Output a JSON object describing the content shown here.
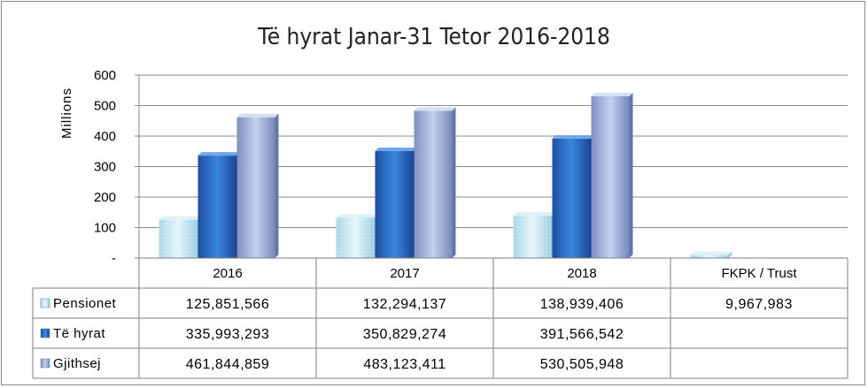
{
  "chart_data": {
    "type": "bar",
    "title": "Të hyrat  Janar-31 Tetor  2016-2018",
    "ylabel": "Millions",
    "xlabel": "",
    "ylim": [
      0,
      600
    ],
    "yticks": [
      "-",
      "100",
      "200",
      "300",
      "400",
      "500",
      "600"
    ],
    "ytick_values": [
      0,
      100,
      200,
      300,
      400,
      500,
      600
    ],
    "categories": [
      "2016",
      "2017",
      "2018",
      "FKPK / Trust"
    ],
    "series": [
      {
        "name": "Pensionet",
        "color": "#bfe3f0",
        "values": [
          125851566,
          132294137,
          138939406,
          9967983
        ],
        "labels": [
          "125,851,566",
          "132,294,137",
          "138,939,406",
          "9,967,983"
        ]
      },
      {
        "name": "Të hyrat",
        "color": "#2e6fc9",
        "values": [
          335993293,
          350829274,
          391566542,
          null
        ],
        "labels": [
          "335,993,293",
          "350,829,274",
          "391,566,542",
          ""
        ]
      },
      {
        "name": "Gjithsej",
        "color": "#a3b4dc",
        "values": [
          461844859,
          483123411,
          530505948,
          null
        ],
        "labels": [
          "461,844,859",
          "483,123,411",
          "530,505,948",
          ""
        ]
      }
    ],
    "grid": true,
    "legend": "data-table-left"
  }
}
